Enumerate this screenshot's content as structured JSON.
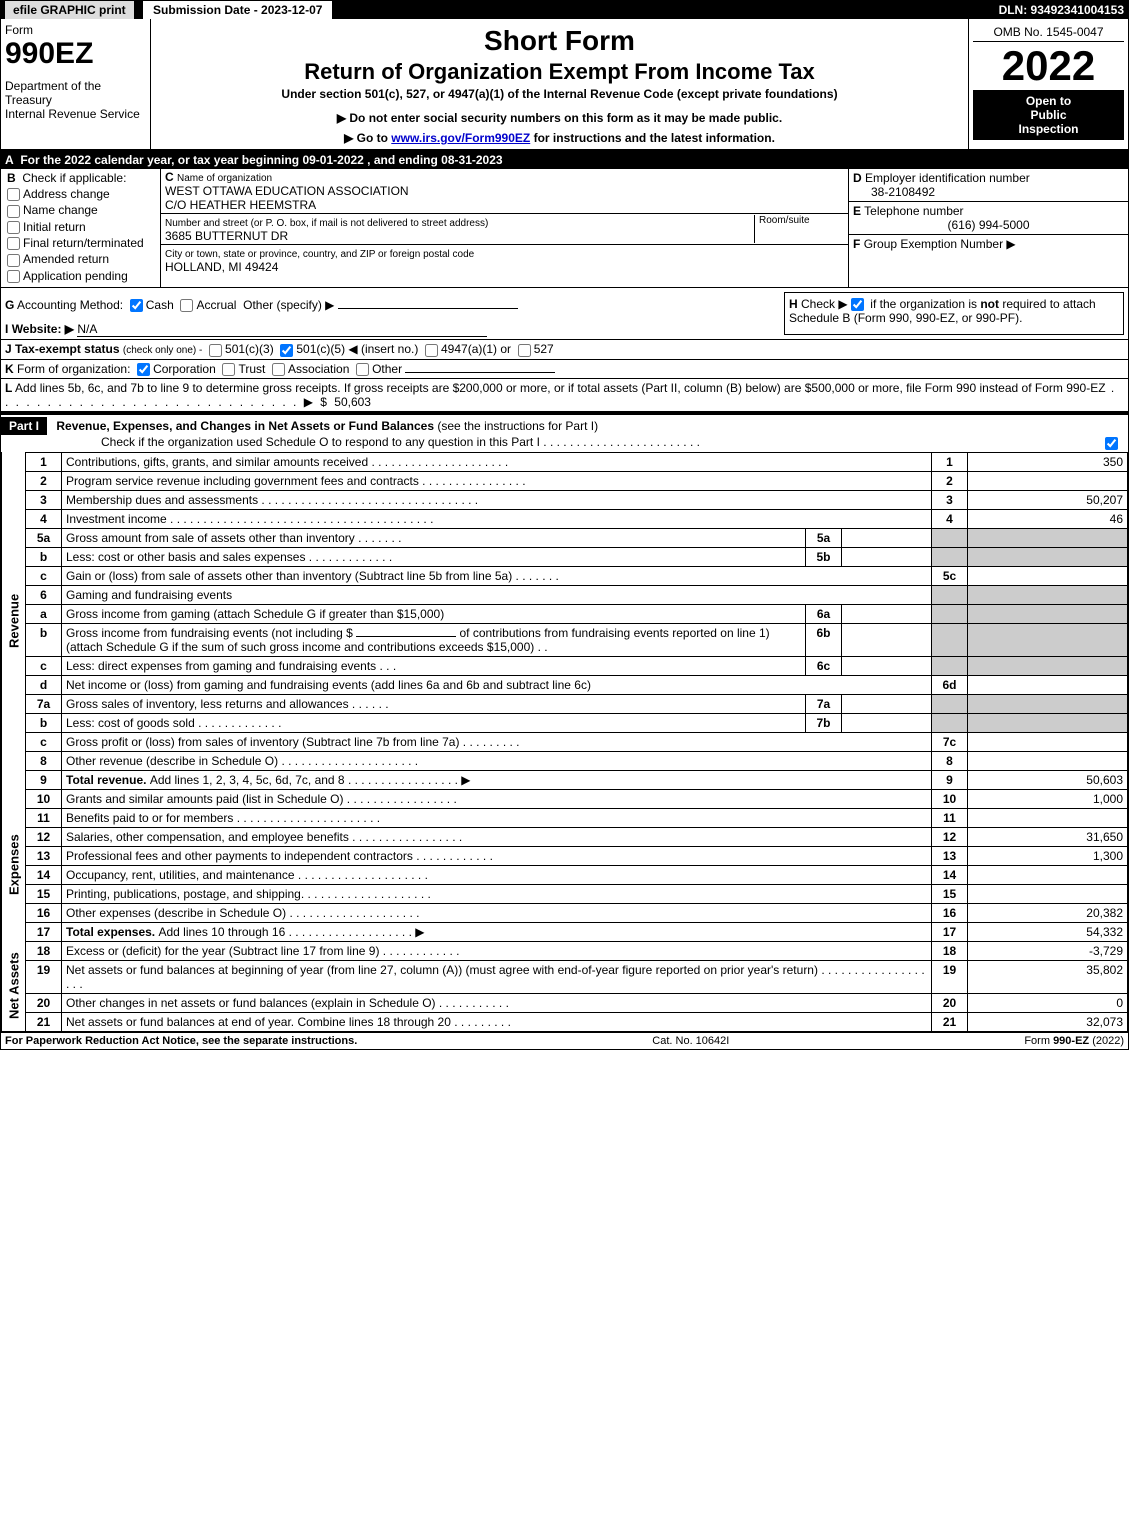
{
  "topbar": {
    "efile": "efile GRAPHIC print",
    "subdate_label": "Submission Date - 2023-12-07",
    "dln": "DLN: 93492341004153"
  },
  "header": {
    "form_word": "Form",
    "form_num": "990EZ",
    "dept1": "Department of the Treasury",
    "dept2": "Internal Revenue Service",
    "title1": "Short Form",
    "title2": "Return of Organization Exempt From Income Tax",
    "subtitle": "Under section 501(c), 527, or 4947(a)(1) of the Internal Revenue Code (except private foundations)",
    "warn": "▶ Do not enter social security numbers on this form as it may be made public.",
    "goto_a": "▶ Go to ",
    "goto_link": "www.irs.gov/Form990EZ",
    "goto_b": " for instructions and the latest information.",
    "omb": "OMB No. 1545-0047",
    "year": "2022",
    "open1": "Open to",
    "open2": "Public",
    "open3": "Inspection"
  },
  "A": {
    "text": "For the 2022 calendar year, or tax year beginning 09-01-2022 , and ending 08-31-2023"
  },
  "B": {
    "label": "Check if applicable:",
    "opts": [
      "Address change",
      "Name change",
      "Initial return",
      "Final return/terminated",
      "Amended return",
      "Application pending"
    ]
  },
  "C": {
    "label": "Name of organization",
    "name": "WEST OTTAWA EDUCATION ASSOCIATION",
    "co": "C/O HEATHER HEEMSTRA",
    "street_label": "Number and street (or P. O. box, if mail is not delivered to street address)",
    "room_label": "Room/suite",
    "street": "3685 BUTTERNUT DR",
    "city_label": "City or town, state or province, country, and ZIP or foreign postal code",
    "city": "HOLLAND, MI  49424"
  },
  "D": {
    "label": "Employer identification number",
    "val": "38-2108492"
  },
  "E": {
    "label": "Telephone number",
    "val": "(616) 994-5000"
  },
  "F": {
    "label": "Group Exemption Number ▶",
    "val": ""
  },
  "G": {
    "label": "Accounting Method:",
    "cash": "Cash",
    "accrual": "Accrual",
    "other": "Other (specify) ▶"
  },
  "H": {
    "text_a": "Check ▶ ",
    "text_b": " if the organization is ",
    "not": "not",
    "text_c": " required to attach Schedule B (Form 990, 990-EZ, or 990-PF)."
  },
  "I": {
    "label": "Website: ▶",
    "val": "N/A"
  },
  "J": {
    "label": "Tax-exempt status",
    "tiny": "(check only one) -",
    "o1": "501(c)(3)",
    "o2_a": "501(c)(",
    "o2_num": "5",
    "o2_b": ") ◀ (insert no.)",
    "o3": "4947(a)(1) or",
    "o4": "527"
  },
  "K": {
    "label": "Form of organization:",
    "opts": [
      "Corporation",
      "Trust",
      "Association",
      "Other"
    ]
  },
  "L": {
    "text": "Add lines 5b, 6c, and 7b to line 9 to determine gross receipts. If gross receipts are $200,000 or more, or if total assets (Part II, column (B) below) are $500,000 or more, file Form 990 instead of Form 990-EZ",
    "dots": " . . . . . . . . . . . . . . . . . . . . . . . . . . . . .  ▶ $ ",
    "val": "50,603"
  },
  "partI": {
    "label": "Part I",
    "title": "Revenue, Expenses, and Changes in Net Assets or Fund Balances",
    "paren": " (see the instructions for Part I)",
    "check_line": "Check if the organization used Schedule O to respond to any question in this Part I",
    "check_dots": " . . . . . . . . . . . . . . . . . . . . . . . ."
  },
  "sections": {
    "revenue": "Revenue",
    "expenses": "Expenses",
    "netassets": "Net Assets"
  },
  "lines": [
    {
      "sec": "rev",
      "n": "1",
      "d": "Contributions, gifts, grants, and similar amounts received . . . . . . . . . . . . . . . . . . . . .",
      "ref": "1",
      "amt": "350"
    },
    {
      "sec": "rev",
      "n": "2",
      "d": "Program service revenue including government fees and contracts . . . . . . . . . . . . . . . .",
      "ref": "2",
      "amt": ""
    },
    {
      "sec": "rev",
      "n": "3",
      "d": "Membership dues and assessments . . . . . . . . . . . . . . . . . . . . . . . . . . . . . . . . .",
      "ref": "3",
      "amt": "50,207"
    },
    {
      "sec": "rev",
      "n": "4",
      "d": "Investment income . . . . . . . . . . . . . . . . . . . . . . . . . . . . . . . . . . . . . . . .",
      "ref": "4",
      "amt": "46"
    },
    {
      "sec": "rev",
      "n": "5a",
      "d": "Gross amount from sale of assets other than inventory . . . . . . .",
      "mid": "5a",
      "midamt": "",
      "shade": true
    },
    {
      "sec": "rev",
      "n": "b",
      "d": "Less: cost or other basis and sales expenses . . . . . . . . . . . . .",
      "mid": "5b",
      "midamt": "",
      "shade": true
    },
    {
      "sec": "rev",
      "n": "c",
      "d": "Gain or (loss) from sale of assets other than inventory (Subtract line 5b from line 5a) . . . . . . .",
      "ref": "5c",
      "amt": ""
    },
    {
      "sec": "rev",
      "n": "6",
      "d": "Gaming and fundraising events",
      "shade": true,
      "noref": true
    },
    {
      "sec": "rev",
      "n": "a",
      "d": "Gross income from gaming (attach Schedule G if greater than $15,000)",
      "mid": "6a",
      "midamt": "",
      "shade": true
    },
    {
      "sec": "rev",
      "n": "b",
      "d_html": "Gross income from fundraising events (not including $ <span style='border-bottom:1px solid #000;display:inline-block;width:100px'> </span> of contributions from fundraising events reported on line 1) (attach Schedule G if the sum of such gross income and contributions exceeds $15,000)   .   .",
      "mid": "6b",
      "midamt": "",
      "shade": true
    },
    {
      "sec": "rev",
      "n": "c",
      "d": "Less: direct expenses from gaming and fundraising events   .   .   .",
      "mid": "6c",
      "midamt": "",
      "shade": true
    },
    {
      "sec": "rev",
      "n": "d",
      "d": "Net income or (loss) from gaming and fundraising events (add lines 6a and 6b and subtract line 6c)",
      "ref": "6d",
      "amt": ""
    },
    {
      "sec": "rev",
      "n": "7a",
      "d": "Gross sales of inventory, less returns and allowances .   .   .   .   .   .",
      "mid": "7a",
      "midamt": "",
      "shade": true
    },
    {
      "sec": "rev",
      "n": "b",
      "d": "Less: cost of goods sold         .   .   .   .   .   .   .   .   .   .   .   .   .",
      "mid": "7b",
      "midamt": "",
      "shade": true
    },
    {
      "sec": "rev",
      "n": "c",
      "d": "Gross profit or (loss) from sales of inventory (Subtract line 7b from line 7a) .   .   .   .   .   .   .   .   .",
      "ref": "7c",
      "amt": ""
    },
    {
      "sec": "rev",
      "n": "8",
      "d": "Other revenue (describe in Schedule O) .   .   .   .   .   .   .   .   .   .   .   .   .   .   .   .   .   .   .   .   .",
      "ref": "8",
      "amt": ""
    },
    {
      "sec": "rev",
      "n": "9",
      "d_b": "Total revenue. ",
      "d": "Add lines 1, 2, 3, 4, 5c, 6d, 7c, and 8  .   .   .   .   .   .   .   .   .   .   .   .   .   .   .   .   . ▶",
      "ref": "9",
      "amt": "50,603",
      "bold": true
    },
    {
      "sec": "exp",
      "n": "10",
      "d": "Grants and similar amounts paid (list in Schedule O) .   .   .   .   .   .   .   .   .   .   .   .   .   .   .   .   .",
      "ref": "10",
      "amt": "1,000"
    },
    {
      "sec": "exp",
      "n": "11",
      "d": "Benefits paid to or for members     .   .   .   .   .   .   .   .   .   .   .   .   .   .   .   .   .   .   .   .   .   .",
      "ref": "11",
      "amt": ""
    },
    {
      "sec": "exp",
      "n": "12",
      "d": "Salaries, other compensation, and employee benefits .   .   .   .   .   .   .   .   .   .   .   .   .   .   .   .   .",
      "ref": "12",
      "amt": "31,650"
    },
    {
      "sec": "exp",
      "n": "13",
      "d": "Professional fees and other payments to independent contractors .   .   .   .   .   .   .   .   .   .   .   .",
      "ref": "13",
      "amt": "1,300"
    },
    {
      "sec": "exp",
      "n": "14",
      "d": "Occupancy, rent, utilities, and maintenance .   .   .   .   .   .   .   .   .   .   .   .   .   .   .   .   .   .   .   .",
      "ref": "14",
      "amt": ""
    },
    {
      "sec": "exp",
      "n": "15",
      "d": "Printing, publications, postage, and shipping.   .   .   .   .   .   .   .   .   .   .   .   .   .   .   .   .   .   .   .",
      "ref": "15",
      "amt": ""
    },
    {
      "sec": "exp",
      "n": "16",
      "d": "Other expenses (describe in Schedule O)    .   .   .   .   .   .   .   .   .   .   .   .   .   .   .   .   .   .   .   .",
      "ref": "16",
      "amt": "20,382"
    },
    {
      "sec": "exp",
      "n": "17",
      "d_b": "Total expenses. ",
      "d": "Add lines 10 through 16      .   .   .   .   .   .   .   .   .   .   .   .   .   .   .   .   .   .   . ▶",
      "ref": "17",
      "amt": "54,332",
      "bold": true
    },
    {
      "sec": "net",
      "n": "18",
      "d": "Excess or (deficit) for the year (Subtract line 17 from line 9)        .   .   .   .   .   .   .   .   .   .   .   .",
      "ref": "18",
      "amt": "-3,729"
    },
    {
      "sec": "net",
      "n": "19",
      "d": "Net assets or fund balances at beginning of year (from line 27, column (A)) (must agree with end-of-year figure reported on prior year's return) .   .   .   .   .   .   .   .   .   .   .   .   .   .   .   .   .   .   .",
      "ref": "19",
      "amt": "35,802",
      "shade_top": true
    },
    {
      "sec": "net",
      "n": "20",
      "d": "Other changes in net assets or fund balances (explain in Schedule O) .   .   .   .   .   .   .   .   .   .   .",
      "ref": "20",
      "amt": "0"
    },
    {
      "sec": "net",
      "n": "21",
      "d": "Net assets or fund balances at end of year. Combine lines 18 through 20 .   .   .   .   .   .   .   .   .",
      "ref": "21",
      "amt": "32,073"
    }
  ],
  "footer": {
    "left": "For Paperwork Reduction Act Notice, see the separate instructions.",
    "mid": "Cat. No. 10642I",
    "right_a": "Form ",
    "right_b": "990-EZ",
    "right_c": " (2022)"
  }
}
